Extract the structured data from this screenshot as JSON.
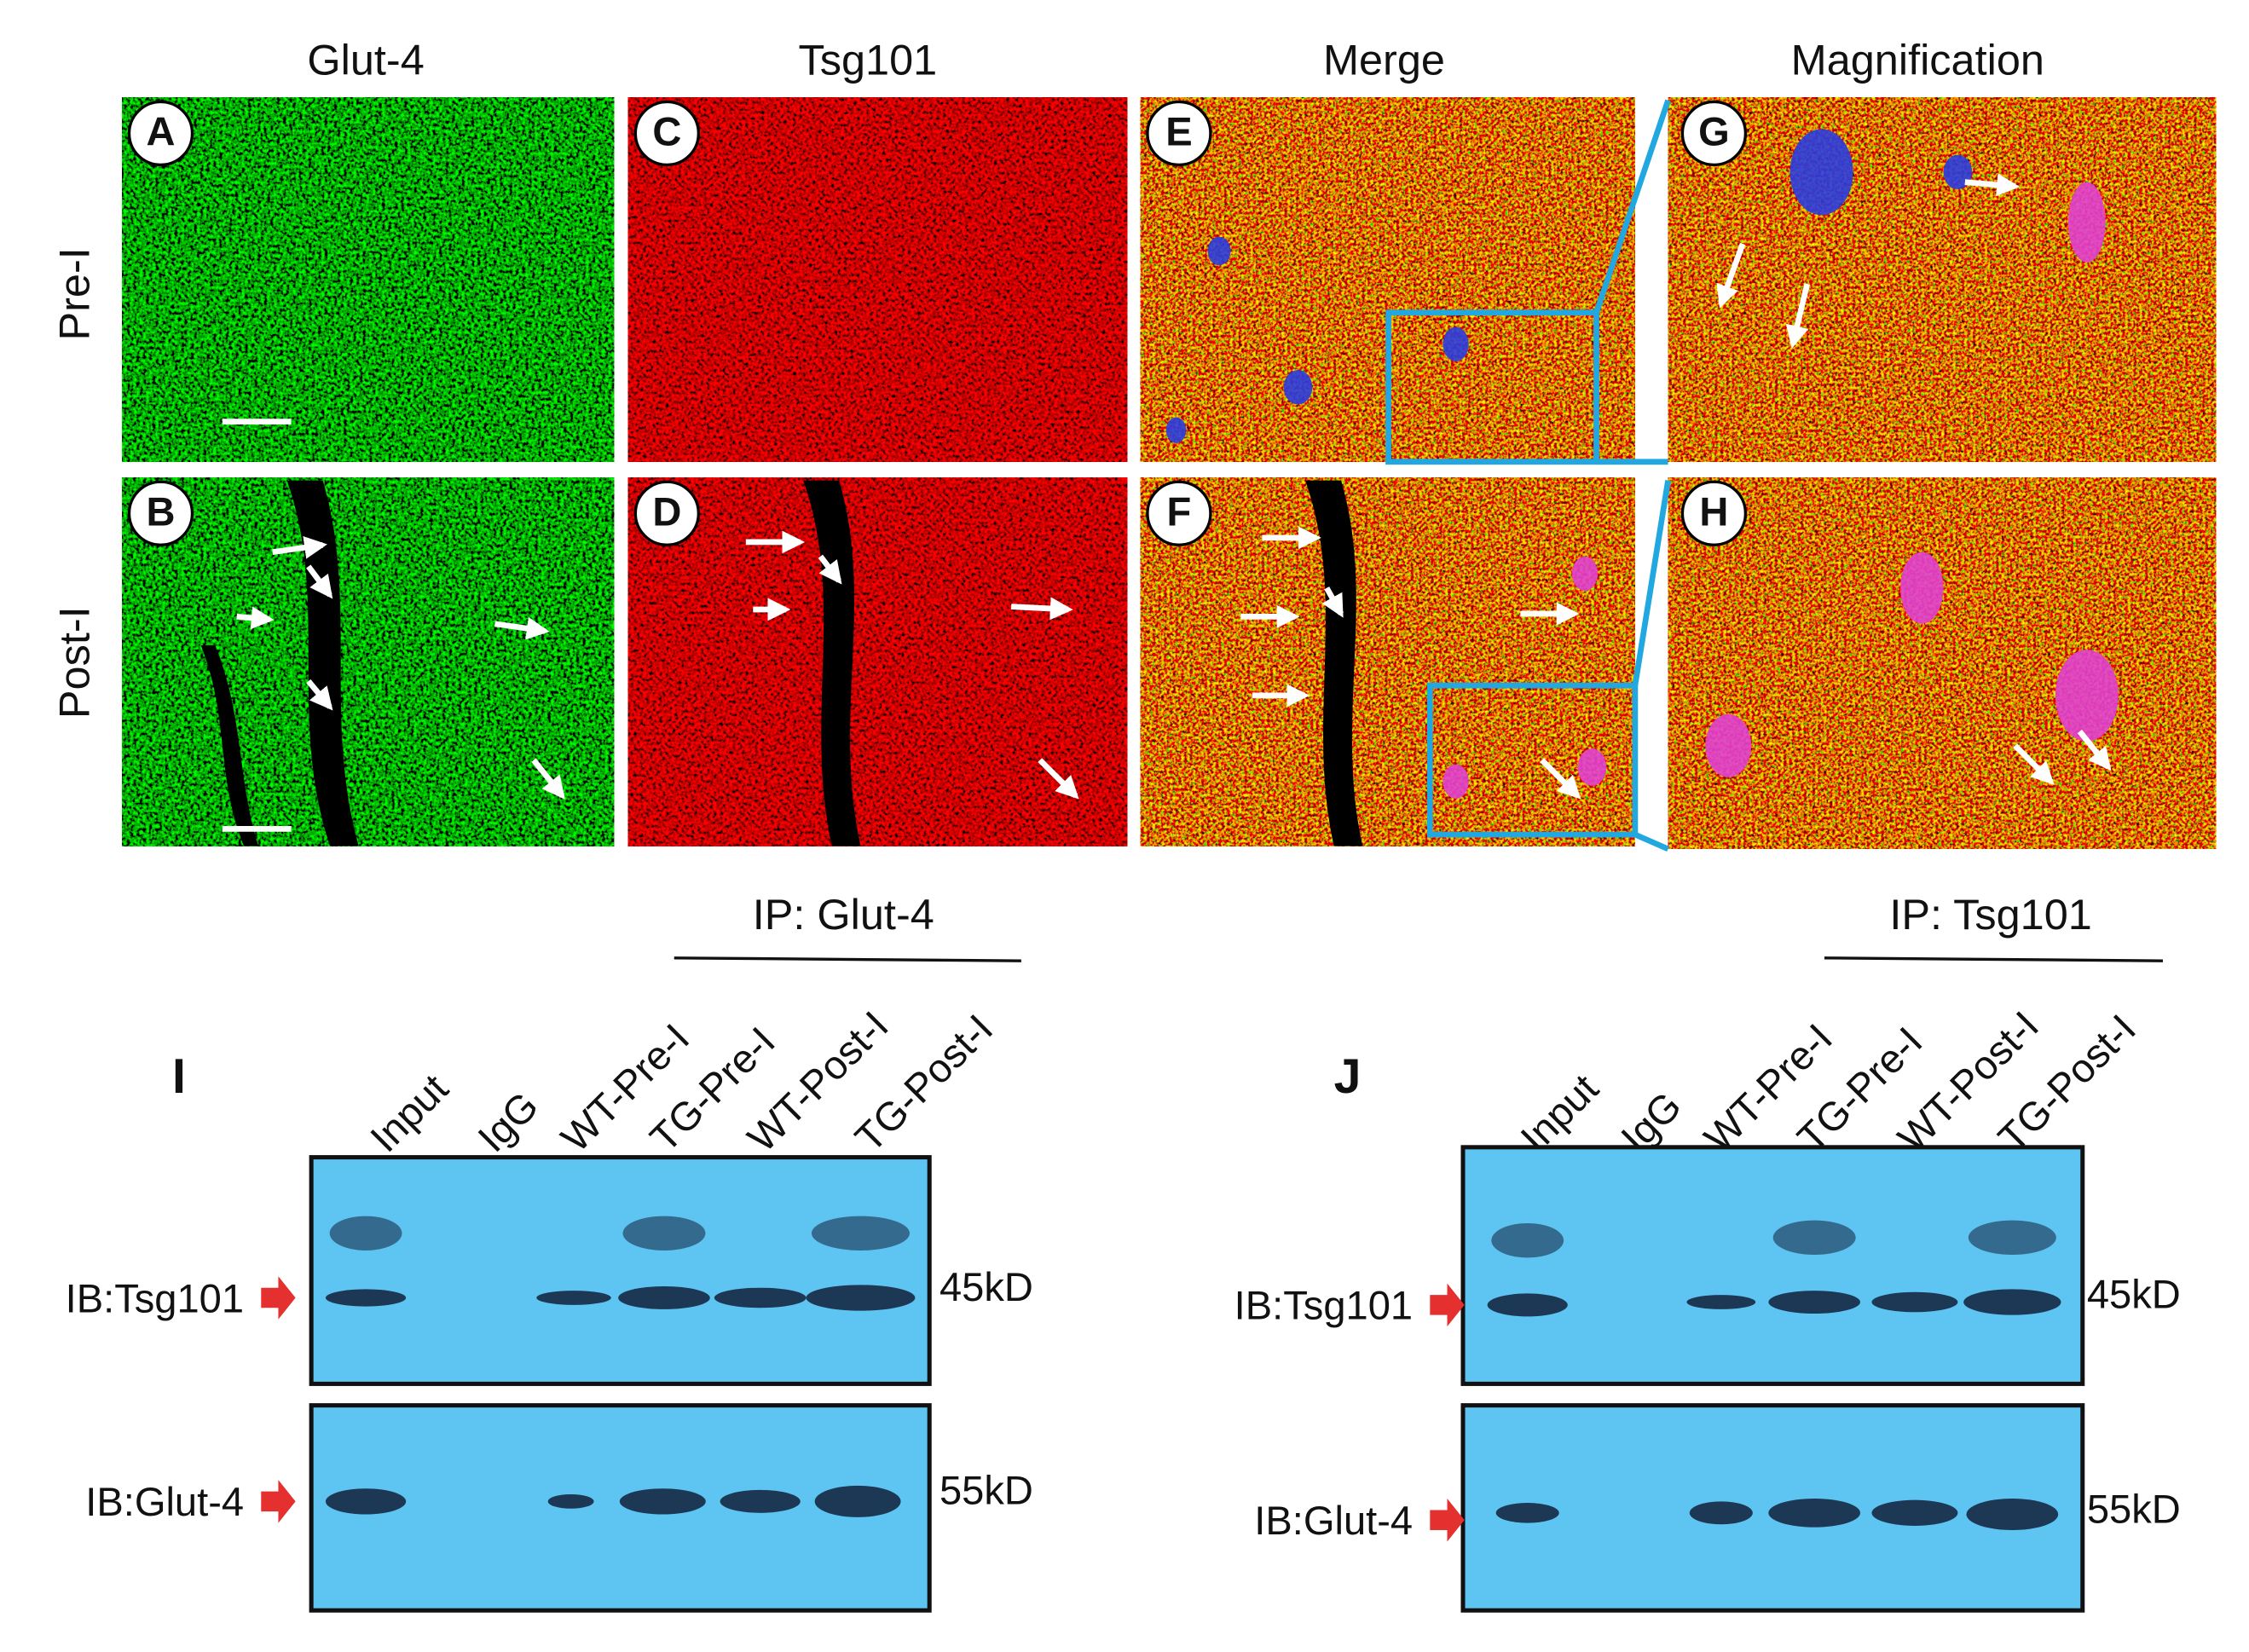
{
  "figure": {
    "column_headers": [
      "Glut-4",
      "Tsg101",
      "Merge",
      "Magnification"
    ],
    "row_labels": [
      "Pre-I",
      "Post-I"
    ],
    "panels": [
      "A",
      "B",
      "C",
      "D",
      "E",
      "F",
      "G",
      "H"
    ],
    "blots": [
      {
        "letter": "I",
        "ip_label": "IP: Glut-4",
        "lanes": [
          "Input",
          "IgG",
          "WT-Pre-I",
          "TG-Pre-I",
          "WT-Post-I",
          "TG-Post-I"
        ],
        "rows": [
          {
            "ib": "IB:Tsg101",
            "size": "45kD"
          },
          {
            "ib": "IB:Glut-4",
            "size": "55kD"
          }
        ]
      },
      {
        "letter": "J",
        "ip_label": "IP: Tsg101",
        "lanes": [
          "Input",
          "IgG",
          "WT-Pre-I",
          "TG-Pre-I",
          "WT-Post-I",
          "TG-Post-I"
        ],
        "rows": [
          {
            "ib": "IB:Tsg101",
            "size": "45kD"
          },
          {
            "ib": "IB:Glut-4",
            "size": "55kD"
          }
        ]
      }
    ]
  }
}
